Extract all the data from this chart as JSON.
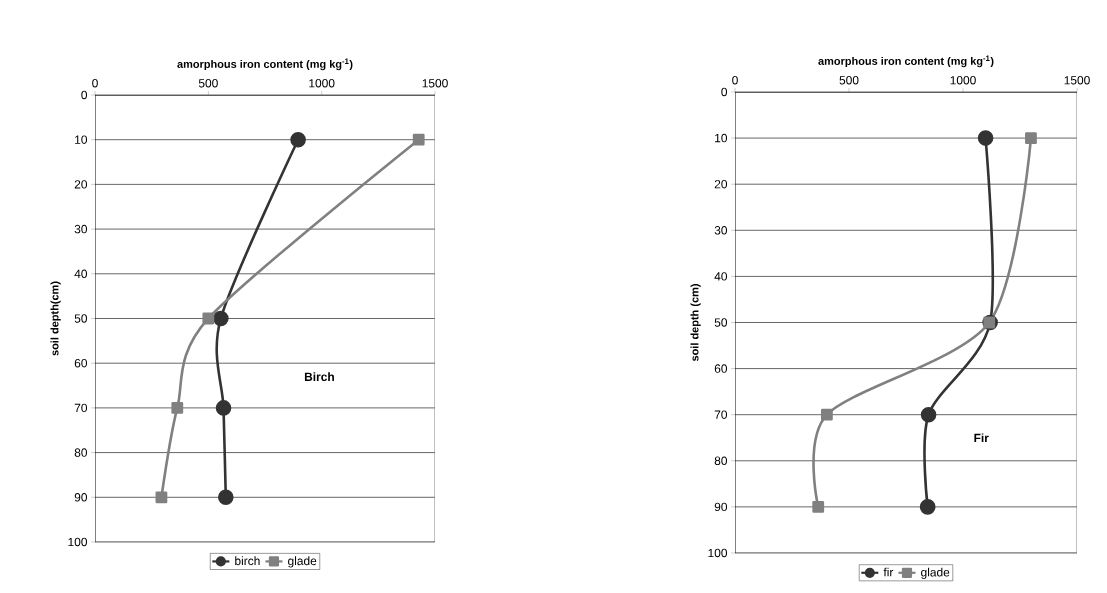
{
  "chart_data": [
    {
      "type": "line",
      "xlabel": "amorphous iron content (mg kg$^{-1}$)",
      "ylabel": "soil depth(cm)",
      "annotations": [
        "Birch"
      ],
      "xlim": [
        0,
        1500
      ],
      "xticks": [
        0,
        500,
        1000,
        1500
      ],
      "ylim": [
        100,
        0
      ],
      "yticks": [
        0,
        10,
        20,
        30,
        40,
        50,
        60,
        70,
        80,
        90,
        100
      ],
      "grid": "y",
      "legend": "bottom",
      "series": [
        {
          "name": "birch",
          "color": "#333333",
          "marker": "circle",
          "x": [
            896,
            555,
            567,
            577
          ],
          "values": [
            10,
            50,
            70,
            90
          ]
        },
        {
          "name": "glade",
          "color": "#808080",
          "marker": "square",
          "x": [
            1428,
            500,
            363,
            293
          ],
          "values": [
            10,
            50,
            70,
            90
          ]
        }
      ]
    },
    {
      "type": "line",
      "xlabel": "amorphous iron content (mg kg$^{-1}$)",
      "ylabel": "soil depth (cm)",
      "annotations": [
        "Fir"
      ],
      "xlim": [
        0,
        1500
      ],
      "xticks": [
        0,
        500,
        1000,
        1500
      ],
      "ylim": [
        100,
        0
      ],
      "yticks": [
        0,
        10,
        20,
        30,
        40,
        50,
        60,
        70,
        80,
        90,
        100
      ],
      "grid": "y",
      "legend": "bottom",
      "series": [
        {
          "name": "fir",
          "color": "#333333",
          "marker": "circle",
          "x": [
            1099,
            1119,
            849,
            845
          ],
          "values": [
            10,
            50,
            70,
            90
          ]
        },
        {
          "name": "glade",
          "color": "#808080",
          "marker": "square",
          "x": [
            1298,
            1115,
            403,
            365
          ],
          "values": [
            10,
            50,
            70,
            90
          ]
        }
      ]
    }
  ]
}
